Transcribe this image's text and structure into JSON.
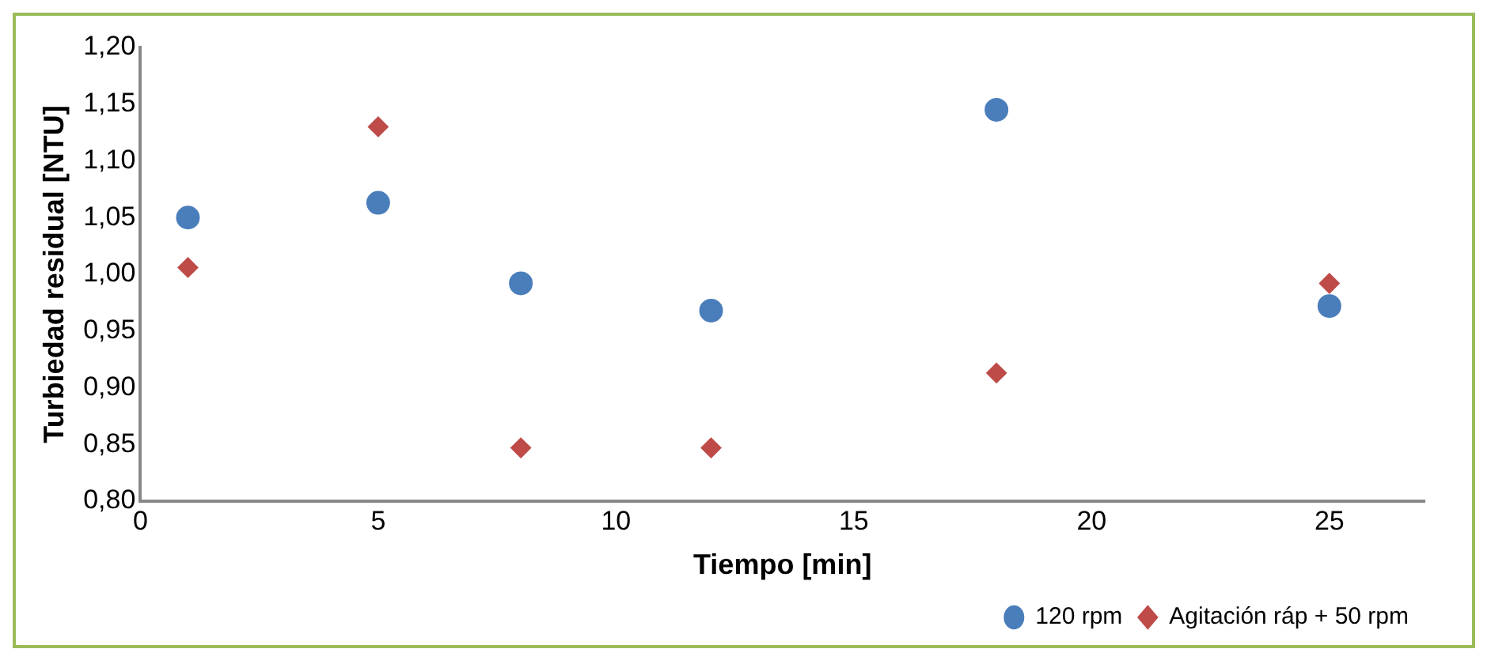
{
  "chart_data": {
    "type": "scatter",
    "xlabel": "Tiempo [min]",
    "ylabel": "Turbiedad residual [NTU]",
    "xlim": [
      0,
      27
    ],
    "xticks": [
      0,
      5,
      10,
      15,
      20,
      25
    ],
    "ylim": [
      0.8,
      1.2
    ],
    "yticks": [
      {
        "value": 0.8,
        "label": "0,80"
      },
      {
        "value": 0.85,
        "label": "0,85"
      },
      {
        "value": 0.9,
        "label": "0,90"
      },
      {
        "value": 0.95,
        "label": "0,95"
      },
      {
        "value": 1.0,
        "label": "1,00"
      },
      {
        "value": 1.05,
        "label": "1,05"
      },
      {
        "value": 1.1,
        "label": "1,10"
      },
      {
        "value": 1.15,
        "label": "1,15"
      },
      {
        "value": 1.2,
        "label": "1,20"
      }
    ],
    "grid": false,
    "legend": "bottom right",
    "series": [
      {
        "name": "120 rpm",
        "color": "#4a7ebb",
        "marker": "circle",
        "x": [
          1,
          5,
          8,
          12,
          18,
          25
        ],
        "values": [
          1.05,
          1.063,
          0.992,
          0.968,
          1.145,
          0.972
        ]
      },
      {
        "name": "Agitación ráp + 50 rpm",
        "color": "#be4b48",
        "marker": "diamond",
        "x": [
          1,
          5,
          8,
          12,
          18,
          25
        ],
        "values": [
          1.006,
          1.13,
          0.847,
          0.847,
          0.913,
          0.992
        ]
      }
    ]
  }
}
